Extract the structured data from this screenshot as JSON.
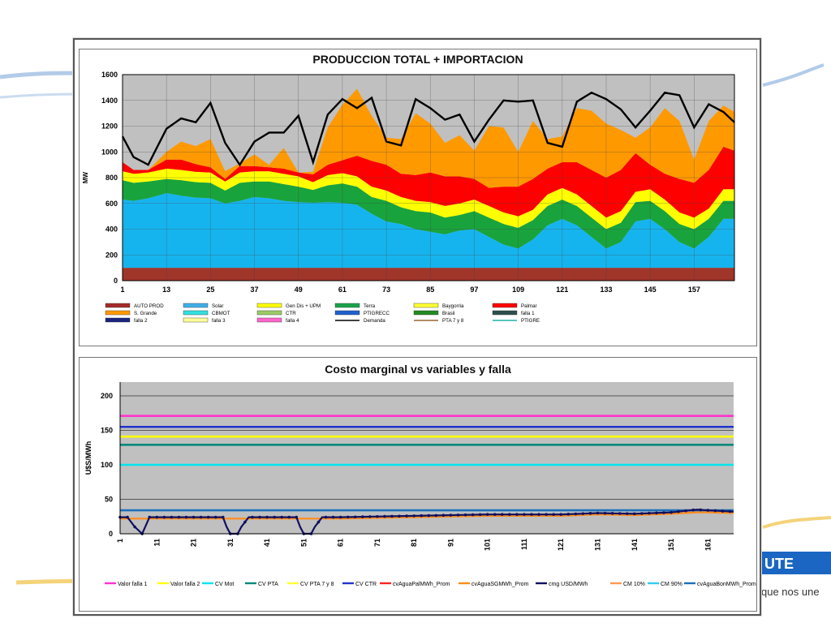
{
  "slogan": "que nos une",
  "colors": {
    "band_blue": "#1a66c2",
    "band_yellow": "#e8b820"
  },
  "chart_data": [
    {
      "type": "area",
      "title": "PRODUCCION TOTAL + IMPORTACION",
      "ylabel": "MW",
      "xlabel": "",
      "ylim": [
        0,
        1600
      ],
      "xlim": [
        1,
        168
      ],
      "yticks": [
        0,
        200,
        400,
        600,
        800,
        1000,
        1200,
        1400,
        1600
      ],
      "xticks": [
        1,
        13,
        25,
        37,
        49,
        61,
        73,
        85,
        97,
        109,
        121,
        133,
        145,
        157
      ],
      "grid": true,
      "legend_position": "bottom",
      "legend": [
        {
          "name": "AUTO PROD",
          "color": "#a52a2a"
        },
        {
          "name": "Solar",
          "color": "#3fb0e8"
        },
        {
          "name": "Gen Dis + UPM",
          "color": "#ffff00"
        },
        {
          "name": "Terra",
          "color": "#1aa34a"
        },
        {
          "name": "Baygorria",
          "color": "#ffff33"
        },
        {
          "name": "Palmar",
          "color": "#ff0000"
        },
        {
          "name": "S. Grande",
          "color": "#ff9900"
        },
        {
          "name": "CBMOT",
          "color": "#33e0e0"
        },
        {
          "name": "CTR",
          "color": "#99cc66"
        },
        {
          "name": "PTIGRECC",
          "color": "#1f5fd0"
        },
        {
          "name": "Brasil",
          "color": "#228b22"
        },
        {
          "name": "falla 1",
          "color": "#2f4f4f"
        },
        {
          "name": "falla 2",
          "color": "#1a237e"
        },
        {
          "name": "falla 3",
          "color": "#ffff99"
        },
        {
          "name": "falla 4",
          "color": "#ff66cc"
        },
        {
          "name": "Demanda",
          "color": "#000000"
        },
        {
          "name": "PTA 7 y 8",
          "color": "#996633"
        },
        {
          "name": "PTIGRE",
          "color": "#20b2aa"
        }
      ],
      "x_anchor": [
        1,
        4,
        8,
        13,
        17,
        21,
        25,
        29,
        33,
        37,
        41,
        45,
        49,
        53,
        57,
        61,
        65,
        69,
        73,
        77,
        81,
        85,
        89,
        93,
        97,
        101,
        105,
        109,
        113,
        117,
        121,
        125,
        129,
        133,
        137,
        141,
        145,
        149,
        153,
        157,
        161,
        165,
        168
      ],
      "stack": [
        {
          "name": "AUTO PROD",
          "color": "#a0352a",
          "values": [
            100,
            100,
            100,
            100,
            100,
            100,
            100,
            100,
            100,
            100,
            100,
            100,
            100,
            100,
            100,
            100,
            100,
            100,
            100,
            100,
            100,
            100,
            100,
            100,
            100,
            100,
            100,
            100,
            100,
            100,
            100,
            100,
            100,
            100,
            100,
            100,
            100,
            100,
            100,
            100,
            100,
            100,
            100
          ]
        },
        {
          "name": "Solar",
          "color": "#16b4ee",
          "values": [
            530,
            520,
            540,
            580,
            560,
            545,
            540,
            500,
            520,
            550,
            540,
            520,
            510,
            505,
            510,
            505,
            490,
            420,
            360,
            340,
            300,
            280,
            260,
            290,
            300,
            240,
            180,
            150,
            220,
            330,
            380,
            330,
            240,
            150,
            200,
            360,
            380,
            300,
            200,
            150,
            240,
            380,
            380
          ]
        },
        {
          "name": "Terra",
          "color": "#19a33c",
          "values": [
            150,
            140,
            130,
            110,
            120,
            120,
            120,
            100,
            140,
            120,
            130,
            130,
            120,
            100,
            130,
            150,
            140,
            130,
            160,
            130,
            140,
            150,
            130,
            120,
            140,
            150,
            160,
            160,
            150,
            150,
            150,
            150,
            150,
            150,
            150,
            150,
            140,
            140,
            140,
            150,
            140,
            140,
            140
          ]
        },
        {
          "name": "Gen Dis + UPM",
          "color": "#ffff00",
          "values": [
            70,
            70,
            70,
            80,
            80,
            80,
            80,
            70,
            80,
            80,
            80,
            80,
            80,
            60,
            80,
            80,
            80,
            80,
            80,
            80,
            80,
            80,
            90,
            90,
            90,
            90,
            90,
            90,
            80,
            90,
            90,
            90,
            90,
            90,
            90,
            80,
            90,
            90,
            90,
            90,
            80,
            90,
            90
          ]
        },
        {
          "name": "Palmar",
          "color": "#ff0000",
          "values": [
            70,
            30,
            20,
            70,
            80,
            60,
            40,
            20,
            50,
            40,
            30,
            40,
            30,
            60,
            80,
            100,
            160,
            200,
            200,
            180,
            200,
            230,
            230,
            210,
            160,
            140,
            200,
            230,
            240,
            200,
            200,
            250,
            280,
            310,
            320,
            300,
            190,
            200,
            260,
            270,
            300,
            330,
            300
          ]
        },
        {
          "name": "S. Grande",
          "color": "#ff9900",
          "values": [
            0,
            0,
            0,
            60,
            140,
            140,
            220,
            60,
            20,
            90,
            20,
            160,
            0,
            20,
            290,
            430,
            520,
            350,
            210,
            270,
            480,
            380,
            260,
            320,
            220,
            480,
            460,
            270,
            450,
            230,
            200,
            420,
            460,
            420,
            310,
            120,
            290,
            510,
            450,
            180,
            380,
            320,
            300
          ]
        }
      ],
      "demanda": [
        1120,
        960,
        900,
        1180,
        1260,
        1230,
        1380,
        1070,
        900,
        1080,
        1150,
        1150,
        1280,
        920,
        1290,
        1410,
        1340,
        1420,
        1080,
        1050,
        1410,
        1340,
        1250,
        1290,
        1080,
        1250,
        1400,
        1390,
        1400,
        1070,
        1040,
        1390,
        1460,
        1410,
        1330,
        1190,
        1320,
        1460,
        1440,
        1190,
        1370,
        1310,
        1230
      ]
    },
    {
      "type": "line",
      "title": "Costo marginal  vs variables y falla",
      "ylabel": "U$S/MWh",
      "xlabel": "",
      "ylim": [
        0,
        220
      ],
      "xlim": [
        1,
        168
      ],
      "yticks": [
        0,
        50,
        100,
        150,
        200
      ],
      "xticks": [
        1,
        11,
        21,
        31,
        41,
        51,
        61,
        71,
        81,
        91,
        101,
        111,
        121,
        131,
        141,
        151,
        161
      ],
      "grid": true,
      "legend_position": "bottom",
      "legend": [
        {
          "name": "Valor falla 1",
          "color": "#ff33cc"
        },
        {
          "name": "Valor falla 2",
          "color": "#ffff00"
        },
        {
          "name": "CV Mot",
          "color": "#00e5ee"
        },
        {
          "name": "CV PTA",
          "color": "#00897b"
        },
        {
          "name": "CV PTA 7 y 8",
          "color": "#ffff33"
        },
        {
          "name": "CV CTR",
          "color": "#2233cc"
        },
        {
          "name": "cvAguaPalMWh_Prom",
          "color": "#ff2222"
        },
        {
          "name": "cvAguaSGMWh_Prom",
          "color": "#ff8c1a"
        },
        {
          "name": "cmg USD/MWh",
          "color": "#101060"
        },
        {
          "name": "CM 10%",
          "color": "#ff9955"
        },
        {
          "name": "CM 90%",
          "color": "#33ccee"
        },
        {
          "name": "cvAguaBonMWh_Prom",
          "color": "#1e6fb8"
        }
      ],
      "constant_series": [
        {
          "name": "Valor falla 1",
          "color": "#ff33cc",
          "value": 171
        },
        {
          "name": "CV CTR",
          "color": "#2233cc",
          "value": 155
        },
        {
          "name": "Valor falla 2",
          "color": "#ffff00",
          "value": 141
        },
        {
          "name": "CV PTA",
          "color": "#00897b",
          "value": 129
        },
        {
          "name": "CV Mot",
          "color": "#00e5ee",
          "value": 100
        },
        {
          "name": "cvAguaBonMWh_Prom",
          "color": "#1e6fb8",
          "value": 34
        }
      ],
      "x_anchor": [
        1,
        3,
        5,
        7,
        9,
        12,
        21,
        29,
        30,
        31,
        33,
        34,
        36,
        41,
        49,
        50,
        51,
        53,
        54,
        56,
        61,
        71,
        81,
        91,
        101,
        111,
        121,
        131,
        141,
        151,
        158,
        161,
        168
      ],
      "cmg": [
        24,
        24,
        10,
        0,
        24,
        24,
        24,
        24,
        10,
        0,
        0,
        10,
        24,
        24,
        24,
        10,
        0,
        0,
        10,
        24,
        24,
        25,
        26,
        27,
        28,
        28,
        28,
        30,
        29,
        31,
        35,
        34,
        32
      ],
      "cm10": [
        22,
        22,
        22,
        22,
        22,
        22,
        22,
        22,
        22,
        22,
        22,
        22,
        22,
        22,
        22,
        22,
        22,
        22,
        22,
        22,
        22,
        23,
        24,
        25,
        26,
        26,
        26,
        28,
        27,
        29,
        31,
        31,
        30
      ]
    }
  ]
}
